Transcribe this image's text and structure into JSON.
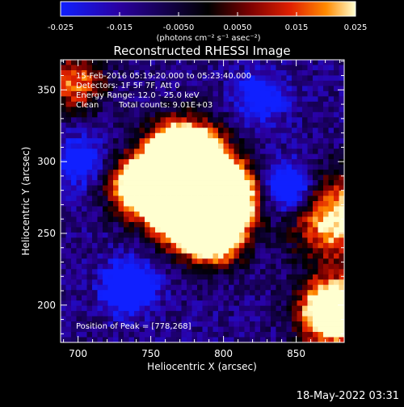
{
  "chart_data": {
    "type": "heatmap",
    "title": "Reconstructed RHESSI Image",
    "xlabel": "Heliocentric X (arcsec)",
    "ylabel": "Heliocentric Y (arcsec)",
    "xlim": [
      688,
      883
    ],
    "ylim": [
      174,
      371
    ],
    "x_ticks": [
      700,
      750,
      800,
      850
    ],
    "y_ticks": [
      200,
      250,
      300,
      350
    ],
    "colorbar": {
      "range": [
        -0.025,
        0.025
      ],
      "ticks": [
        "-0.025",
        "-0.015",
        "-0.0050",
        "0.0050",
        "0.015",
        "0.025"
      ],
      "units": "(photons cm⁻² s⁻¹ asec⁻²)",
      "colors": [
        "#1020ff",
        "#2a00a0",
        "#000000",
        "#7a0000",
        "#e02000",
        "#ff8a00",
        "#ffffd0"
      ]
    },
    "annotations": [
      "15-Feb-2016 05:19:20.000 to 05:23:40.000",
      "Detectors: 1F 5F 7F, Att 0",
      "Energy Range: 12.0 - 25.0 keV",
      "Clean",
      "Total counts: 9.01E+03"
    ],
    "peak_label": "Position of Peak = [778,268]",
    "peak": [
      778,
      268
    ]
  },
  "footer": {
    "timestamp": "18-May-2022 03:31"
  }
}
